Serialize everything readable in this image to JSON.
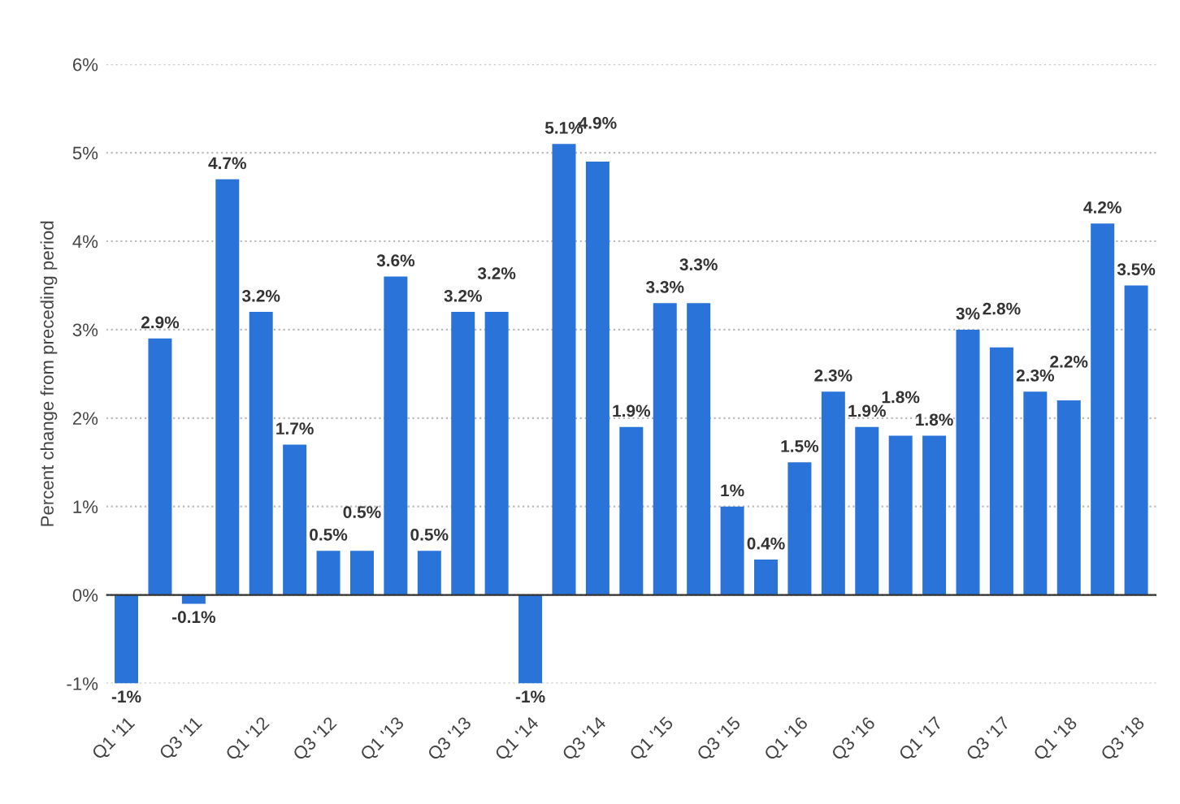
{
  "chart_data": {
    "type": "bar",
    "ylabel": "Percent change from preceding period",
    "categories": [
      "Q1 '11",
      null,
      "Q3 '11",
      null,
      "Q1 '12",
      null,
      "Q3 '12",
      null,
      "Q1 '13",
      null,
      "Q3 '13",
      null,
      "Q1 '14",
      null,
      "Q3 '14",
      null,
      "Q1 '15",
      null,
      "Q3 '15",
      null,
      "Q1 '16",
      null,
      "Q3 '16",
      null,
      "Q1 '17",
      null,
      "Q3 '17",
      null,
      "Q1 '18",
      null,
      "Q3 '18"
    ],
    "values": [
      -1,
      2.9,
      -0.1,
      4.7,
      3.2,
      1.7,
      0.5,
      0.5,
      3.6,
      0.5,
      3.2,
      3.2,
      -1,
      5.1,
      4.9,
      1.9,
      3.3,
      3.3,
      1,
      0.4,
      1.5,
      2.3,
      1.9,
      1.8,
      1.8,
      3,
      2.8,
      2.3,
      2.2,
      4.2,
      3.5
    ],
    "value_labels": [
      "-1%",
      "2.9%",
      "-0.1%",
      "4.7%",
      "3.2%",
      "1.7%",
      "0.5%",
      "0.5%",
      "3.6%",
      "0.5%",
      "3.2%",
      "3.2%",
      "-1%",
      "5.1%",
      "4.9%",
      "1.9%",
      "3.3%",
      "3.3%",
      "1%",
      "0.4%",
      "1.5%",
      "2.3%",
      "1.9%",
      "1.8%",
      "1.8%",
      "3%",
      "2.8%",
      "2.3%",
      "2.2%",
      "4.2%",
      "3.5%"
    ],
    "color": "#2a74d9",
    "ylim": [
      -1,
      6
    ],
    "yticks": [
      {
        "value": -1,
        "label": "-1%"
      },
      {
        "value": 0,
        "label": "0%"
      },
      {
        "value": 1,
        "label": "1%"
      },
      {
        "value": 2,
        "label": "2%"
      },
      {
        "value": 3,
        "label": "3%"
      },
      {
        "value": 4,
        "label": "4%"
      },
      {
        "value": 5,
        "label": "5%"
      },
      {
        "value": 6,
        "label": "6%"
      }
    ],
    "grid": "y"
  }
}
